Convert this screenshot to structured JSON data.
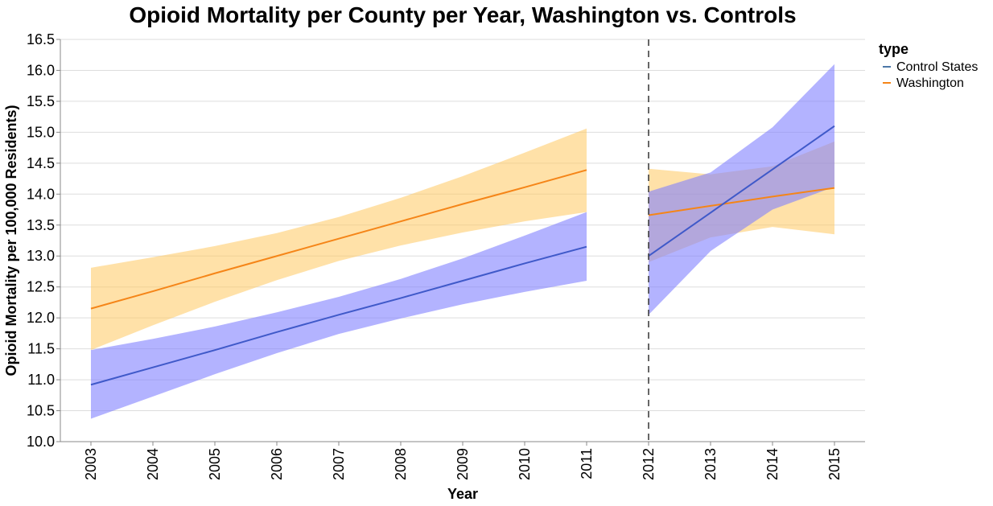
{
  "chart_data": {
    "type": "line",
    "title": "Opioid Mortality per County per Year, Washington vs. Controls",
    "xlabel": "Year",
    "ylabel": "Opioid Mortality per 100,000 Residents)",
    "ylim": [
      10.0,
      16.5
    ],
    "y_ticks": [
      "10.0",
      "10.5",
      "11.0",
      "11.5",
      "12.0",
      "12.5",
      "13.0",
      "13.5",
      "14.0",
      "14.5",
      "15.0",
      "15.5",
      "16.0",
      "16.5"
    ],
    "x_ticks": [
      "2003",
      "2004",
      "2005",
      "2006",
      "2007",
      "2008",
      "2009",
      "2010",
      "2011",
      "2012",
      "2013",
      "2014",
      "2015"
    ],
    "policy_year": 2012,
    "grid": true,
    "legend": {
      "title": "type",
      "placement": "top-right",
      "entries": [
        {
          "label": "Control States",
          "color": "#4c78a8"
        },
        {
          "label": "Washington",
          "color": "#f58518"
        }
      ]
    },
    "series": [
      {
        "name": "Washington",
        "period": "pre",
        "color": "#f58518",
        "band_color": "#ffc861",
        "x": [
          2003,
          2004,
          2005,
          2006,
          2007,
          2008,
          2009,
          2010,
          2011
        ],
        "y": [
          12.15,
          12.43,
          12.72,
          13.0,
          13.28,
          13.56,
          13.84,
          14.11,
          14.39
        ],
        "lower": [
          11.48,
          11.88,
          12.26,
          12.61,
          12.92,
          13.17,
          13.38,
          13.56,
          13.71
        ],
        "upper": [
          12.81,
          12.98,
          13.16,
          13.37,
          13.63,
          13.94,
          14.29,
          14.67,
          15.06
        ]
      },
      {
        "name": "Control States",
        "period": "pre",
        "color": "#3f59c9",
        "band_color": "#8080ff",
        "x": [
          2003,
          2004,
          2005,
          2006,
          2007,
          2008,
          2009,
          2010,
          2011
        ],
        "y": [
          10.92,
          11.2,
          11.48,
          11.77,
          12.05,
          12.32,
          12.6,
          12.88,
          13.15
        ],
        "lower": [
          10.37,
          10.73,
          11.09,
          11.43,
          11.74,
          11.99,
          12.22,
          12.42,
          12.6
        ],
        "upper": [
          11.48,
          11.66,
          11.86,
          12.09,
          12.34,
          12.63,
          12.96,
          13.33,
          13.71
        ]
      },
      {
        "name": "Washington",
        "period": "post",
        "color": "#f58518",
        "band_color": "#ffc861",
        "x": [
          2012,
          2013,
          2014,
          2015
        ],
        "y": [
          13.66,
          13.81,
          13.96,
          14.1
        ],
        "lower": [
          12.9,
          13.3,
          13.47,
          13.35
        ],
        "upper": [
          14.41,
          14.32,
          14.45,
          14.85
        ]
      },
      {
        "name": "Control States",
        "period": "post",
        "color": "#3f59c9",
        "band_color": "#8080ff",
        "x": [
          2012,
          2013,
          2014,
          2015
        ],
        "y": [
          13.0,
          13.7,
          14.4,
          15.1
        ],
        "lower": [
          12.05,
          13.08,
          13.75,
          14.12
        ],
        "upper": [
          14.04,
          14.35,
          15.08,
          16.1
        ]
      }
    ]
  }
}
